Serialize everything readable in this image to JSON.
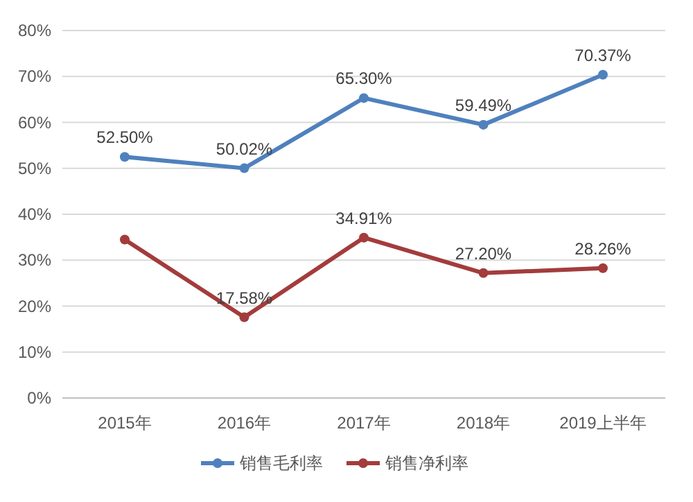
{
  "chart_data": {
    "type": "line",
    "categories": [
      "2015年",
      "2016年",
      "2017年",
      "2018年",
      "2019上半年"
    ],
    "series": [
      {
        "name": "销售毛利率",
        "color": "#4f81bd",
        "values": [
          52.5,
          50.02,
          65.3,
          59.49,
          70.37
        ],
        "value_labels": [
          "52.50%",
          "50.02%",
          "65.30%",
          "59.49%",
          "70.37%"
        ]
      },
      {
        "name": "销售净利率",
        "color": "#a33c3c",
        "values": [
          34.5,
          17.58,
          34.91,
          27.2,
          28.26
        ],
        "value_labels": [
          null,
          "17.58%",
          "34.91%",
          "27.20%",
          "28.26%"
        ]
      }
    ],
    "ylim": [
      0,
      80
    ],
    "yticks": [
      {
        "value": 0,
        "label": "0%"
      },
      {
        "value": 10,
        "label": "10%"
      },
      {
        "value": 20,
        "label": "20%"
      },
      {
        "value": 30,
        "label": "30%"
      },
      {
        "value": 40,
        "label": "40%"
      },
      {
        "value": 50,
        "label": "50%"
      },
      {
        "value": 60,
        "label": "60%"
      },
      {
        "value": 70,
        "label": "70%"
      },
      {
        "value": 80,
        "label": "80%"
      }
    ],
    "grid": "y",
    "legend": "bottom",
    "marker": "circle",
    "line_style": "solid"
  }
}
